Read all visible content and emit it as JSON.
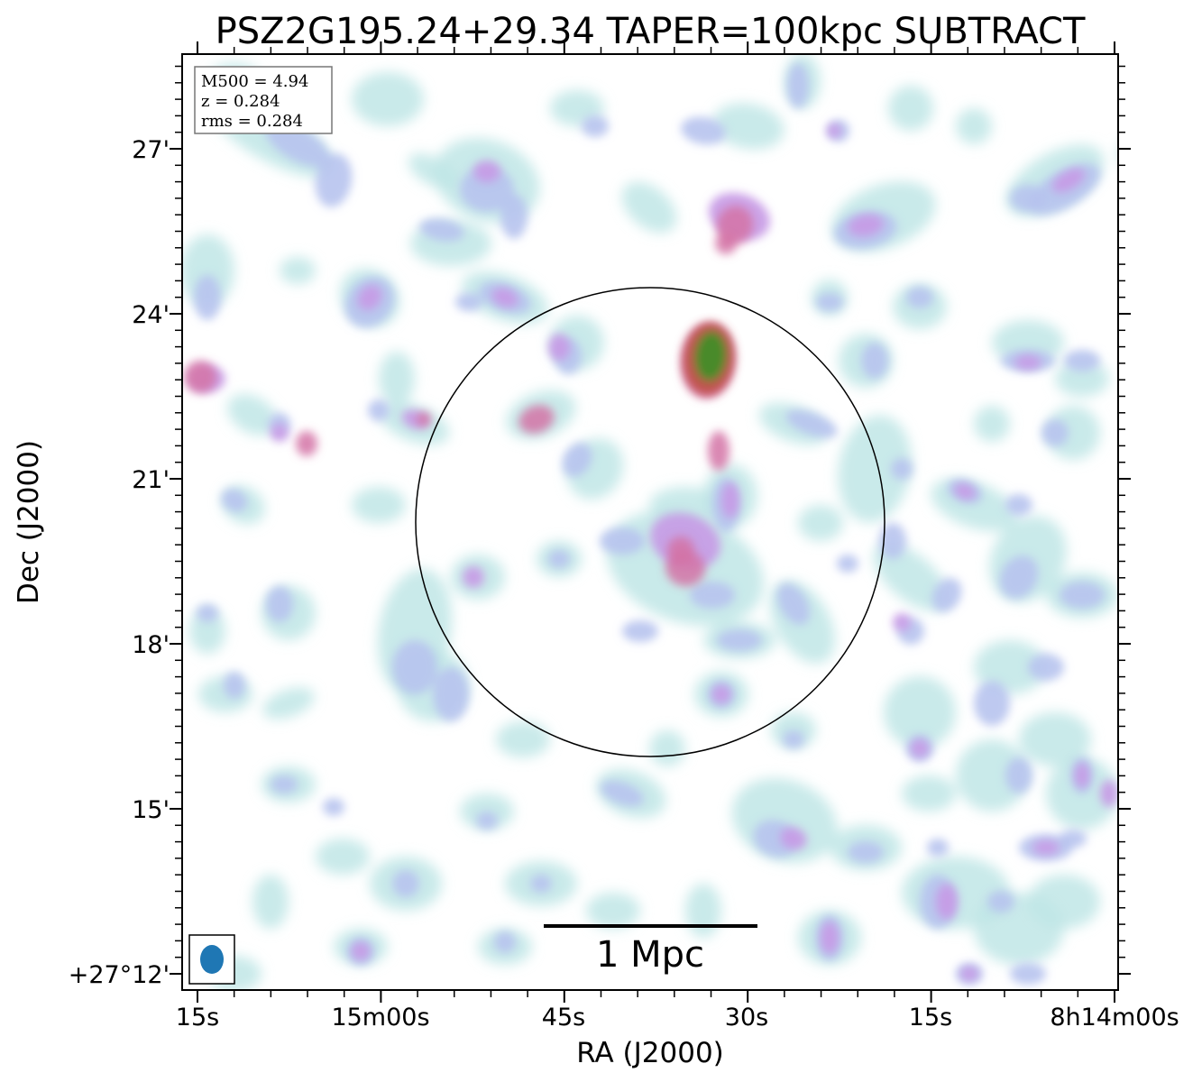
{
  "title": "PSZ2G195.24+29.34 TAPER=100kpc SUBTRACT",
  "axes": {
    "xlabel": "RA (J2000)",
    "ylabel": "Dec (J2000)",
    "x_ticks": [
      "15s",
      "15m00s",
      "45s",
      "30s",
      "15s",
      "8h14m00s"
    ],
    "y_ticks": [
      "+27°12'",
      "15'",
      "18'",
      "21'",
      "24'",
      "27'"
    ]
  },
  "info_box": {
    "lines": [
      "M500 = 4.94",
      "z = 0.284",
      "rms = 0.284"
    ]
  },
  "scale_bar": {
    "label": "1 Mpc"
  },
  "colors": {
    "faint": "#bfe6e6",
    "low": "#b7c3ee",
    "mid": "#c79ae6",
    "high": "#d473a6",
    "peak_edge": "#c0504a",
    "peak": "#4a8a2a",
    "beam": "#1f77b4",
    "circle": "#000000"
  }
}
